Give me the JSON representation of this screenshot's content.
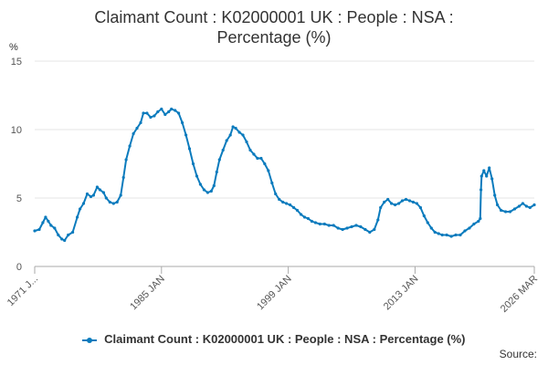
{
  "chart_data": {
    "type": "line",
    "title_line1": "Claimant Count : K02000001 UK : People : NSA :",
    "title_line2": "Percentage (%)",
    "ylabel": "%",
    "ylim": [
      0,
      15
    ],
    "yticks": [
      0,
      5,
      10,
      15
    ],
    "xlim": [
      1971.0,
      2026.17
    ],
    "xticks": [
      {
        "label": "1971 J...",
        "value": 1971.0
      },
      {
        "label": "1985 JAN",
        "value": 1985.0
      },
      {
        "label": "1999 JAN",
        "value": 1999.0
      },
      {
        "label": "2013 JAN",
        "value": 2013.0
      },
      {
        "label": "2026 MAR",
        "value": 2026.17
      }
    ],
    "grid": true,
    "legend_position": "bottom",
    "series": [
      {
        "name": "Claimant Count : K02000001 UK : People : NSA : Percentage (%)",
        "color": "#0b7bbd",
        "points": [
          [
            1971.0,
            2.6
          ],
          [
            1971.5,
            2.7
          ],
          [
            1971.9,
            3.2
          ],
          [
            1972.2,
            3.6
          ],
          [
            1972.5,
            3.3
          ],
          [
            1972.8,
            3.0
          ],
          [
            1973.2,
            2.8
          ],
          [
            1973.6,
            2.3
          ],
          [
            1974.0,
            2.0
          ],
          [
            1974.3,
            1.9
          ],
          [
            1974.7,
            2.3
          ],
          [
            1975.2,
            2.5
          ],
          [
            1975.7,
            3.6
          ],
          [
            1976.0,
            4.2
          ],
          [
            1976.4,
            4.6
          ],
          [
            1976.8,
            5.3
          ],
          [
            1977.2,
            5.1
          ],
          [
            1977.5,
            5.2
          ],
          [
            1977.9,
            5.8
          ],
          [
            1978.2,
            5.6
          ],
          [
            1978.6,
            5.4
          ],
          [
            1978.9,
            5.0
          ],
          [
            1979.3,
            4.7
          ],
          [
            1979.7,
            4.6
          ],
          [
            1980.1,
            4.7
          ],
          [
            1980.5,
            5.2
          ],
          [
            1980.8,
            6.5
          ],
          [
            1981.1,
            7.8
          ],
          [
            1981.5,
            8.8
          ],
          [
            1981.9,
            9.7
          ],
          [
            1982.3,
            10.1
          ],
          [
            1982.7,
            10.5
          ],
          [
            1983.0,
            11.2
          ],
          [
            1983.4,
            11.2
          ],
          [
            1983.8,
            10.9
          ],
          [
            1984.2,
            11.0
          ],
          [
            1984.6,
            11.3
          ],
          [
            1985.0,
            11.5
          ],
          [
            1985.4,
            11.1
          ],
          [
            1985.8,
            11.3
          ],
          [
            1986.1,
            11.5
          ],
          [
            1986.5,
            11.4
          ],
          [
            1986.9,
            11.2
          ],
          [
            1987.3,
            10.5
          ],
          [
            1987.7,
            9.6
          ],
          [
            1988.1,
            8.6
          ],
          [
            1988.5,
            7.5
          ],
          [
            1988.9,
            6.6
          ],
          [
            1989.3,
            6.0
          ],
          [
            1989.7,
            5.6
          ],
          [
            1990.1,
            5.4
          ],
          [
            1990.5,
            5.5
          ],
          [
            1990.8,
            5.9
          ],
          [
            1991.1,
            6.9
          ],
          [
            1991.4,
            7.8
          ],
          [
            1991.8,
            8.5
          ],
          [
            1992.2,
            9.2
          ],
          [
            1992.6,
            9.6
          ],
          [
            1992.9,
            10.2
          ],
          [
            1993.2,
            10.1
          ],
          [
            1993.6,
            9.8
          ],
          [
            1994.0,
            9.6
          ],
          [
            1994.4,
            9.1
          ],
          [
            1994.8,
            8.5
          ],
          [
            1995.2,
            8.2
          ],
          [
            1995.6,
            7.9
          ],
          [
            1996.0,
            7.9
          ],
          [
            1996.4,
            7.5
          ],
          [
            1996.8,
            7.0
          ],
          [
            1997.2,
            6.1
          ],
          [
            1997.6,
            5.3
          ],
          [
            1998.0,
            4.9
          ],
          [
            1998.4,
            4.7
          ],
          [
            1998.8,
            4.6
          ],
          [
            1999.2,
            4.5
          ],
          [
            1999.6,
            4.3
          ],
          [
            2000.0,
            4.1
          ],
          [
            2000.4,
            3.8
          ],
          [
            2000.8,
            3.6
          ],
          [
            2001.2,
            3.5
          ],
          [
            2001.6,
            3.3
          ],
          [
            2002.0,
            3.2
          ],
          [
            2002.5,
            3.1
          ],
          [
            2003.0,
            3.1
          ],
          [
            2003.5,
            3.0
          ],
          [
            2004.0,
            3.0
          ],
          [
            2004.5,
            2.8
          ],
          [
            2005.0,
            2.7
          ],
          [
            2005.5,
            2.8
          ],
          [
            2006.0,
            2.9
          ],
          [
            2006.5,
            3.0
          ],
          [
            2007.0,
            2.9
          ],
          [
            2007.5,
            2.7
          ],
          [
            2008.0,
            2.5
          ],
          [
            2008.5,
            2.7
          ],
          [
            2008.9,
            3.4
          ],
          [
            2009.2,
            4.3
          ],
          [
            2009.6,
            4.7
          ],
          [
            2010.0,
            4.9
          ],
          [
            2010.4,
            4.6
          ],
          [
            2010.8,
            4.5
          ],
          [
            2011.2,
            4.6
          ],
          [
            2011.6,
            4.8
          ],
          [
            2012.0,
            4.9
          ],
          [
            2012.4,
            4.8
          ],
          [
            2012.8,
            4.7
          ],
          [
            2013.2,
            4.6
          ],
          [
            2013.6,
            4.3
          ],
          [
            2014.0,
            3.7
          ],
          [
            2014.4,
            3.2
          ],
          [
            2014.8,
            2.8
          ],
          [
            2015.2,
            2.5
          ],
          [
            2015.6,
            2.4
          ],
          [
            2016.0,
            2.3
          ],
          [
            2016.5,
            2.3
          ],
          [
            2017.0,
            2.2
          ],
          [
            2017.5,
            2.3
          ],
          [
            2018.0,
            2.3
          ],
          [
            2018.5,
            2.6
          ],
          [
            2019.0,
            2.8
          ],
          [
            2019.5,
            3.1
          ],
          [
            2020.0,
            3.3
          ],
          [
            2020.2,
            3.5
          ],
          [
            2020.28,
            5.6
          ],
          [
            2020.35,
            6.6
          ],
          [
            2020.6,
            7.0
          ],
          [
            2020.9,
            6.6
          ],
          [
            2021.2,
            7.2
          ],
          [
            2021.5,
            6.4
          ],
          [
            2021.8,
            5.2
          ],
          [
            2022.1,
            4.5
          ],
          [
            2022.5,
            4.1
          ],
          [
            2023.0,
            4.0
          ],
          [
            2023.5,
            4.0
          ],
          [
            2024.0,
            4.2
          ],
          [
            2024.5,
            4.4
          ],
          [
            2024.9,
            4.6
          ],
          [
            2025.3,
            4.4
          ],
          [
            2025.7,
            4.3
          ],
          [
            2026.17,
            4.5
          ]
        ]
      }
    ],
    "legend_label": "Claimant Count : K02000001 UK : People : NSA : Percentage (%)",
    "source_label": "Source:"
  }
}
